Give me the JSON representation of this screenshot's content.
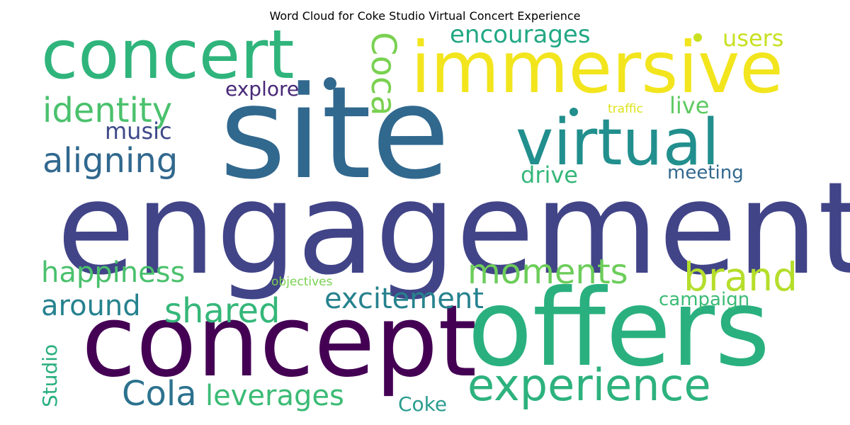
{
  "chart_data": {
    "type": "wordcloud",
    "title": "Word Cloud for Coke Studio Virtual Concert Experience",
    "colormap": "viridis",
    "background": "#ffffff",
    "words": [
      {
        "text": "engagement",
        "weight": 1.0,
        "color": "#414487"
      },
      {
        "text": "site",
        "weight": 0.95,
        "color": "#31688e"
      },
      {
        "text": "concept",
        "weight": 0.75,
        "color": "#440154"
      },
      {
        "text": "offers",
        "weight": 0.7,
        "color": "#2ab07f"
      },
      {
        "text": "immersive",
        "weight": 0.55,
        "color": "#f2e51d"
      },
      {
        "text": "concert",
        "weight": 0.5,
        "color": "#2fb47c"
      },
      {
        "text": "virtual",
        "weight": 0.45,
        "color": "#218f8d"
      },
      {
        "text": "experience",
        "weight": 0.35,
        "color": "#2db27d"
      },
      {
        "text": "brand",
        "weight": 0.3,
        "color": "#b5de2b"
      },
      {
        "text": "aligning",
        "weight": 0.28,
        "color": "#31688e"
      },
      {
        "text": "identity",
        "weight": 0.28,
        "color": "#4ac16d"
      },
      {
        "text": "Coca",
        "weight": 0.28,
        "color": "#7ad151"
      },
      {
        "text": "moments",
        "weight": 0.28,
        "color": "#6ccd5a"
      },
      {
        "text": "happiness",
        "weight": 0.25,
        "color": "#4ac16d"
      },
      {
        "text": "shared",
        "weight": 0.28,
        "color": "#35b779"
      },
      {
        "text": "Cola",
        "weight": 0.28,
        "color": "#2c728e"
      },
      {
        "text": "leverages",
        "weight": 0.22,
        "color": "#3bbb75"
      },
      {
        "text": "excitement",
        "weight": 0.22,
        "color": "#26828e"
      },
      {
        "text": "around",
        "weight": 0.22,
        "color": "#26828e"
      },
      {
        "text": "encourages",
        "weight": 0.2,
        "color": "#22a884"
      },
      {
        "text": "users",
        "weight": 0.2,
        "color": "#c8e020"
      },
      {
        "text": "live",
        "weight": 0.18,
        "color": "#5ec962"
      },
      {
        "text": "music",
        "weight": 0.18,
        "color": "#3e4989"
      },
      {
        "text": "explore",
        "weight": 0.17,
        "color": "#482878"
      },
      {
        "text": "drive",
        "weight": 0.16,
        "color": "#35b779"
      },
      {
        "text": "meeting",
        "weight": 0.15,
        "color": "#31688e"
      },
      {
        "text": "campaign",
        "weight": 0.15,
        "color": "#3bbb75"
      },
      {
        "text": "Studio",
        "weight": 0.15,
        "color": "#29af7f"
      },
      {
        "text": "Coke",
        "weight": 0.15,
        "color": "#2a9d8f"
      },
      {
        "text": "traffic",
        "weight": 0.08,
        "color": "#dde318"
      },
      {
        "text": "objectives",
        "weight": 0.08,
        "color": "#7ad151"
      }
    ]
  }
}
